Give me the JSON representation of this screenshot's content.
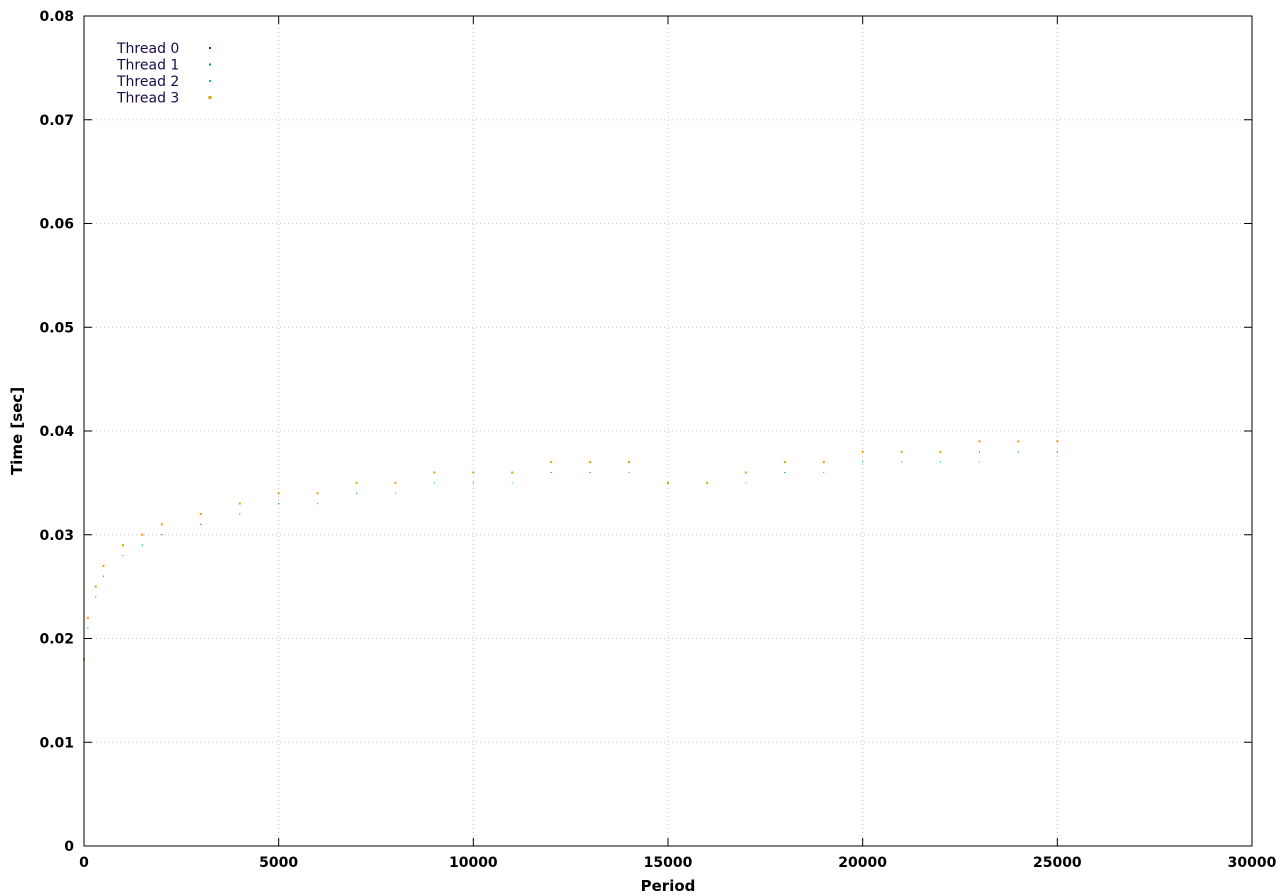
{
  "chart_data": {
    "type": "scatter",
    "xlabel": "Period",
    "ylabel": "Time [sec]",
    "xlim": [
      0,
      30000
    ],
    "ylim": [
      0,
      0.08
    ],
    "x_ticks": [
      "0",
      "5000",
      "10000",
      "15000",
      "20000",
      "25000",
      "30000"
    ],
    "y_ticks": [
      "0",
      "0.01",
      "0.02",
      "0.03",
      "0.04",
      "0.05",
      "0.06",
      "0.07",
      "0.08"
    ],
    "grid": true,
    "legend_position": "top-left",
    "series": [
      {
        "name": "Thread 0",
        "color": "#5b0c9e",
        "marker_size": 1,
        "points": [
          [
            0,
            0.016
          ],
          [
            100,
            0.02
          ],
          [
            300,
            0.024
          ],
          [
            500,
            0.026
          ],
          [
            1000,
            0.028
          ],
          [
            1500,
            0.029
          ],
          [
            2000,
            0.03
          ],
          [
            3000,
            0.031
          ],
          [
            4000,
            0.032
          ],
          [
            5000,
            0.033
          ],
          [
            6000,
            0.034
          ],
          [
            7000,
            0.034
          ],
          [
            8000,
            0.035
          ],
          [
            9000,
            0.036
          ],
          [
            10000,
            0.036
          ],
          [
            11000,
            0.036
          ],
          [
            12000,
            0.036
          ],
          [
            13000,
            0.036
          ],
          [
            14000,
            0.037
          ],
          [
            15000,
            0.035
          ],
          [
            16000,
            0.035
          ],
          [
            17000,
            0.036
          ],
          [
            18000,
            0.036
          ],
          [
            19000,
            0.037
          ],
          [
            20000,
            0.038
          ],
          [
            21000,
            0.038
          ],
          [
            22000,
            0.038
          ],
          [
            23000,
            0.038
          ],
          [
            24000,
            0.038
          ],
          [
            25000,
            0.038
          ]
        ]
      },
      {
        "name": "Thread 1",
        "color": "#009e73",
        "marker_size": 1,
        "points": [
          [
            0,
            0.017
          ],
          [
            100,
            0.021
          ],
          [
            300,
            0.024
          ],
          [
            500,
            0.026
          ],
          [
            1000,
            0.028
          ],
          [
            1500,
            0.029
          ],
          [
            2000,
            0.03
          ],
          [
            3000,
            0.031
          ],
          [
            4000,
            0.032
          ],
          [
            5000,
            0.033
          ],
          [
            6000,
            0.033
          ],
          [
            7000,
            0.034
          ],
          [
            8000,
            0.035
          ],
          [
            9000,
            0.035
          ],
          [
            10000,
            0.035
          ],
          [
            11000,
            0.036
          ],
          [
            12000,
            0.036
          ],
          [
            13000,
            0.036
          ],
          [
            14000,
            0.036
          ],
          [
            15000,
            0.035
          ],
          [
            16000,
            0.035
          ],
          [
            17000,
            0.036
          ],
          [
            18000,
            0.036
          ],
          [
            19000,
            0.037
          ],
          [
            20000,
            0.037
          ],
          [
            21000,
            0.037
          ],
          [
            22000,
            0.037
          ],
          [
            23000,
            0.038
          ],
          [
            24000,
            0.038
          ],
          [
            25000,
            0.038
          ]
        ]
      },
      {
        "name": "Thread 2",
        "color": "#1ab2d8",
        "marker_size": 1,
        "points": [
          [
            0,
            0.017
          ],
          [
            100,
            0.021
          ],
          [
            300,
            0.024
          ],
          [
            500,
            0.026
          ],
          [
            1000,
            0.028
          ],
          [
            1500,
            0.029
          ],
          [
            2000,
            0.03
          ],
          [
            3000,
            0.031
          ],
          [
            4000,
            0.032
          ],
          [
            5000,
            0.033
          ],
          [
            6000,
            0.033
          ],
          [
            7000,
            0.034
          ],
          [
            8000,
            0.034
          ],
          [
            9000,
            0.035
          ],
          [
            10000,
            0.035
          ],
          [
            11000,
            0.035
          ],
          [
            12000,
            0.036
          ],
          [
            13000,
            0.036
          ],
          [
            14000,
            0.036
          ],
          [
            15000,
            0.035
          ],
          [
            16000,
            0.035
          ],
          [
            17000,
            0.035
          ],
          [
            18000,
            0.036
          ],
          [
            19000,
            0.036
          ],
          [
            20000,
            0.037
          ],
          [
            21000,
            0.037
          ],
          [
            22000,
            0.037
          ],
          [
            23000,
            0.037
          ],
          [
            24000,
            0.038
          ],
          [
            25000,
            0.038
          ]
        ]
      },
      {
        "name": "Thread 3",
        "color": "#e69f00",
        "marker_size": 2,
        "points": [
          [
            0,
            0.018
          ],
          [
            100,
            0.022
          ],
          [
            300,
            0.025
          ],
          [
            500,
            0.027
          ],
          [
            1000,
            0.029
          ],
          [
            1500,
            0.03
          ],
          [
            2000,
            0.031
          ],
          [
            3000,
            0.032
          ],
          [
            4000,
            0.033
          ],
          [
            5000,
            0.034
          ],
          [
            6000,
            0.034
          ],
          [
            7000,
            0.035
          ],
          [
            8000,
            0.035
          ],
          [
            9000,
            0.036
          ],
          [
            10000,
            0.036
          ],
          [
            11000,
            0.036
          ],
          [
            12000,
            0.037
          ],
          [
            13000,
            0.037
          ],
          [
            14000,
            0.037
          ],
          [
            15000,
            0.035
          ],
          [
            16000,
            0.035
          ],
          [
            17000,
            0.036
          ],
          [
            18000,
            0.037
          ],
          [
            19000,
            0.037
          ],
          [
            20000,
            0.038
          ],
          [
            21000,
            0.038
          ],
          [
            22000,
            0.038
          ],
          [
            23000,
            0.039
          ],
          [
            24000,
            0.039
          ],
          [
            25000,
            0.039
          ]
        ]
      }
    ]
  }
}
